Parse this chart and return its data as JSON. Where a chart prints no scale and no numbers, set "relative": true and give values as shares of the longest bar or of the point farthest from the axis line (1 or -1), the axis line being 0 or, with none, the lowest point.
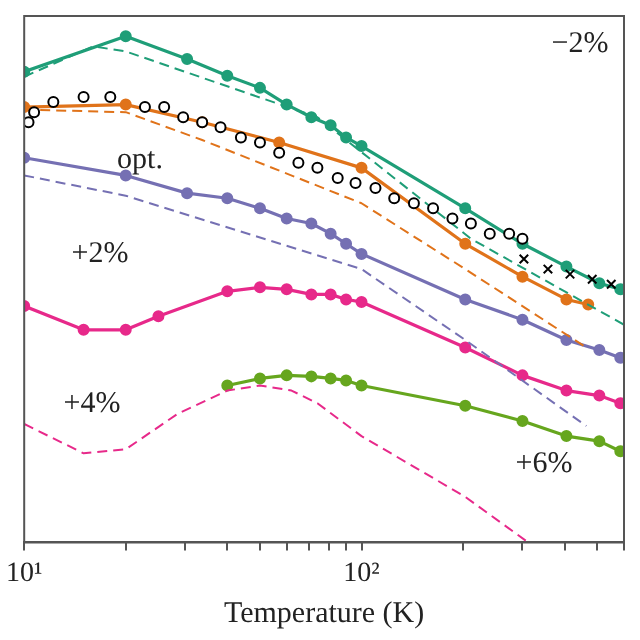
{
  "chart_data": {
    "type": "line",
    "relative": true,
    "xlabel": "Temperature (K)",
    "log": "x",
    "grid": false,
    "legend": false,
    "xlim": [
      10,
      600
    ],
    "xticks": [
      {
        "value": 10,
        "label": "10¹"
      },
      {
        "value": 20,
        "label": null
      },
      {
        "value": 30,
        "label": null
      },
      {
        "value": 40,
        "label": null
      },
      {
        "value": 50,
        "label": null
      },
      {
        "value": 60,
        "label": null
      },
      {
        "value": 70,
        "label": null
      },
      {
        "value": 80,
        "label": null
      },
      {
        "value": 90,
        "label": null
      },
      {
        "value": 100,
        "label": "10²"
      },
      {
        "value": 200,
        "label": null
      },
      {
        "value": 300,
        "label": null
      },
      {
        "value": 400,
        "label": null
      },
      {
        "value": 500,
        "label": null
      },
      {
        "value": 600,
        "label": null
      }
    ],
    "annotations": [
      "−2%",
      "opt.",
      "+2%",
      "+4%",
      "+6%"
    ],
    "series": [
      {
        "type": "line",
        "color": "#1f9e78",
        "marker": "circle",
        "line_style": "solid",
        "x": [
          10,
          20,
          30.4,
          40,
          50,
          60,
          71,
          81,
          90,
          100,
          203,
          300,
          405,
          507,
          585
        ],
        "values": [
          0.93,
          1.0,
          0.955,
          0.922,
          0.898,
          0.865,
          0.84,
          0.824,
          0.8,
          0.783,
          0.66,
          0.59,
          0.545,
          0.512,
          0.5
        ]
      },
      {
        "type": "line",
        "color": "#1f9e78",
        "marker": "none",
        "line_style": "dashed",
        "x": [
          10,
          16,
          20,
          74,
          211,
          600
        ],
        "values": [
          0.92,
          0.98,
          0.97,
          0.84,
          0.6,
          0.43
        ]
      },
      {
        "type": "line",
        "color": "#e0731a",
        "marker": "circle",
        "line_style": "solid",
        "x": [
          10,
          20,
          33.7,
          57,
          100,
          203,
          300,
          405,
          470
        ],
        "values": [
          0.86,
          0.865,
          0.83,
          0.79,
          0.74,
          0.59,
          0.525,
          0.48,
          0.47
        ]
      },
      {
        "type": "line",
        "color": "#e0731a",
        "marker": "none",
        "line_style": "dashed",
        "x": [
          10,
          20,
          33.7,
          100,
          203,
          464
        ],
        "values": [
          0.855,
          0.85,
          0.795,
          0.67,
          0.54,
          0.385
        ]
      },
      {
        "type": "scatter",
        "color": "#000000",
        "marker": "circle",
        "x": [
          10.3,
          10.7,
          12.2,
          15,
          18,
          22.8,
          26,
          29.6,
          33.7,
          38.2,
          43.9,
          50,
          57,
          65,
          74,
          85,
          96,
          110,
          125,
          143,
          163,
          186,
          211,
          240,
          274,
          300
        ],
        "values": [
          0.83,
          0.85,
          0.87,
          0.88,
          0.88,
          0.86,
          0.86,
          0.84,
          0.83,
          0.82,
          0.8,
          0.79,
          0.77,
          0.75,
          0.74,
          0.72,
          0.71,
          0.7,
          0.68,
          0.67,
          0.66,
          0.64,
          0.63,
          0.61,
          0.61,
          0.6
        ]
      },
      {
        "type": "scatter",
        "color": "#000000",
        "marker": "cross",
        "x": [
          303,
          357,
          415,
          483,
          550
        ],
        "values": [
          0.56,
          0.54,
          0.53,
          0.52,
          0.51
        ]
      },
      {
        "type": "line",
        "color": "#7570b3",
        "marker": "circle",
        "line_style": "solid",
        "x": [
          10,
          20,
          30.4,
          40,
          50,
          60,
          71,
          81,
          90,
          100,
          203,
          300,
          405,
          507,
          585
        ],
        "values": [
          0.76,
          0.725,
          0.69,
          0.68,
          0.66,
          0.64,
          0.63,
          0.61,
          0.59,
          0.57,
          0.48,
          0.44,
          0.4,
          0.38,
          0.365
        ]
      },
      {
        "type": "line",
        "color": "#7570b3",
        "marker": "none",
        "line_style": "dashed",
        "x": [
          10,
          20,
          100,
          203,
          464
        ],
        "values": [
          0.725,
          0.685,
          0.54,
          0.4,
          0.23
        ]
      },
      {
        "type": "line",
        "color": "#e7298a",
        "marker": "circle",
        "line_style": "solid",
        "x": [
          10,
          15,
          20,
          25,
          40,
          50,
          60,
          71,
          81,
          90,
          100,
          203,
          300,
          405,
          507,
          585
        ],
        "values": [
          0.467,
          0.42,
          0.42,
          0.447,
          0.496,
          0.504,
          0.5,
          0.49,
          0.49,
          0.48,
          0.475,
          0.385,
          0.33,
          0.3,
          0.29,
          0.275
        ]
      },
      {
        "type": "line",
        "color": "#e7298a",
        "marker": "none",
        "line_style": "dashed",
        "x": [
          10,
          15,
          20,
          28.5,
          40,
          50,
          62,
          74,
          100,
          203,
          312
        ],
        "values": [
          0.234,
          0.176,
          0.184,
          0.254,
          0.3,
          0.31,
          0.3,
          0.275,
          0.21,
          0.09,
          0.0
        ]
      },
      {
        "type": "line",
        "color": "#66a61e",
        "marker": "circle",
        "line_style": "solid",
        "x": [
          40,
          50,
          60,
          71,
          81,
          90,
          100,
          203,
          300,
          405,
          507,
          585
        ],
        "values": [
          0.31,
          0.324,
          0.33,
          0.328,
          0.324,
          0.32,
          0.31,
          0.27,
          0.24,
          0.21,
          0.2,
          0.18
        ]
      }
    ]
  }
}
